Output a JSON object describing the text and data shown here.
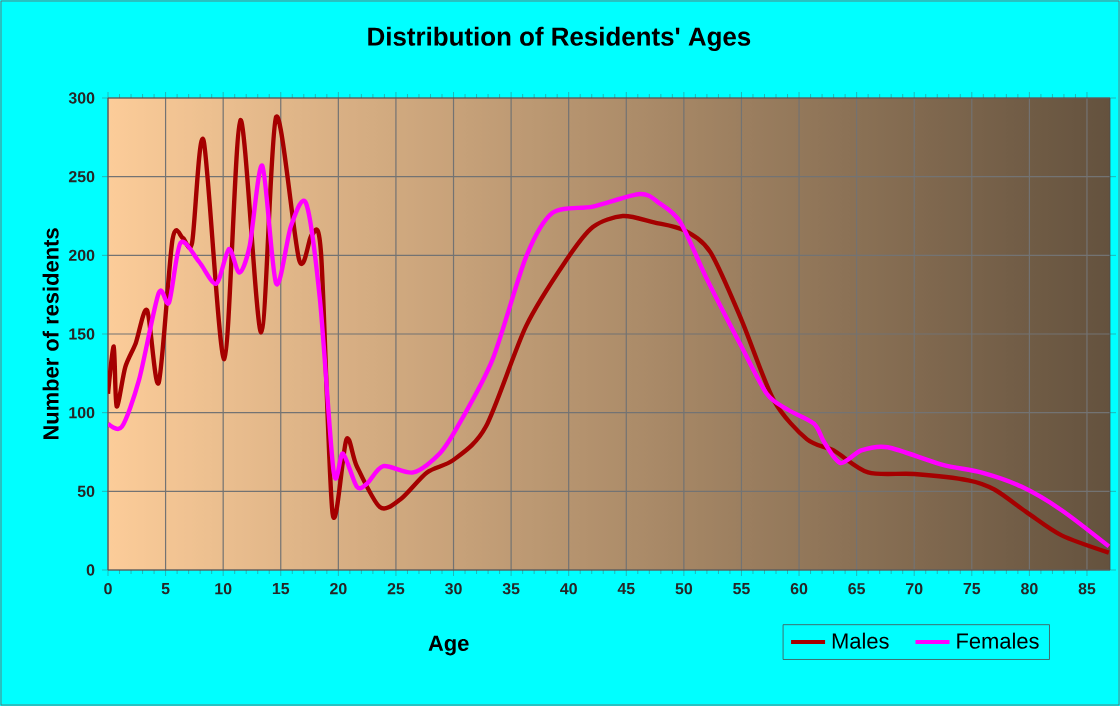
{
  "chart_data": {
    "type": "line",
    "title": "Distribution of Residents' Ages",
    "xlabel": "Age",
    "ylabel": "Number of residents",
    "xlim": [
      0,
      87
    ],
    "xticks": [
      0,
      5,
      10,
      15,
      20,
      25,
      30,
      35,
      40,
      45,
      50,
      55,
      60,
      65,
      70,
      75,
      80,
      85
    ],
    "ylim": [
      0,
      300
    ],
    "yticks": [
      0,
      50,
      100,
      150,
      200,
      250,
      300
    ],
    "grid": true,
    "legend": "bottom right",
    "marker": "none",
    "line_style": "solid",
    "series": [
      {
        "name": "Males",
        "color": "#a50000",
        "x": [
          0,
          0.5,
          0.75,
          1.5,
          2.4,
          3.4,
          4.4,
          5.6,
          6.5,
          7.3,
          8.3,
          10.1,
          11.5,
          13.3,
          14.6,
          16.6,
          17.7,
          18.5,
          19.5,
          20.7,
          21.6,
          23.6,
          25.4,
          27.7,
          30,
          32.8,
          36.3,
          39.8,
          42.1,
          44.7,
          47.4,
          50,
          52.3,
          55,
          57.8,
          60.7,
          63,
          66,
          70,
          74.7,
          77,
          79.9,
          82.8,
          86.9
        ],
        "values": [
          112,
          142,
          104,
          129,
          144,
          165,
          119,
          210,
          211,
          208,
          273,
          134,
          286,
          151,
          288,
          197,
          213,
          201,
          36,
          83,
          66,
          40,
          45,
          62,
          70,
          91,
          155,
          197,
          218,
          225,
          221,
          216,
          202,
          159,
          108,
          83,
          76,
          62,
          61,
          57,
          51,
          36,
          22,
          11
        ]
      },
      {
        "name": "Females",
        "color": "#ff00ff",
        "x": [
          0,
          1.2,
          2.7,
          4.4,
          5.3,
          6.3,
          7.9,
          9.4,
          10.5,
          11.4,
          12.3,
          13.4,
          14.6,
          15.9,
          17.2,
          18.4,
          19.6,
          20.4,
          21.6,
          22.5,
          23.9,
          26.5,
          28.8,
          30.5,
          33.4,
          36.3,
          38.6,
          42.1,
          46.2,
          47.9,
          49.7,
          52,
          55,
          57.2,
          59,
          61.3,
          62.2,
          63.6,
          65.4,
          67.7,
          72.4,
          75.8,
          79.3,
          82.8,
          86.9
        ],
        "values": [
          93,
          91,
          121,
          176,
          170,
          208,
          196,
          182,
          204,
          189,
          206,
          257,
          182,
          219,
          233,
          172,
          62,
          74,
          53,
          55,
          66,
          62,
          74,
          93,
          134,
          199,
          227,
          231,
          239,
          233,
          221,
          185,
          142,
          112,
          102,
          93,
          81,
          68,
          76,
          78,
          67,
          62,
          53,
          38,
          15
        ]
      }
    ]
  }
}
